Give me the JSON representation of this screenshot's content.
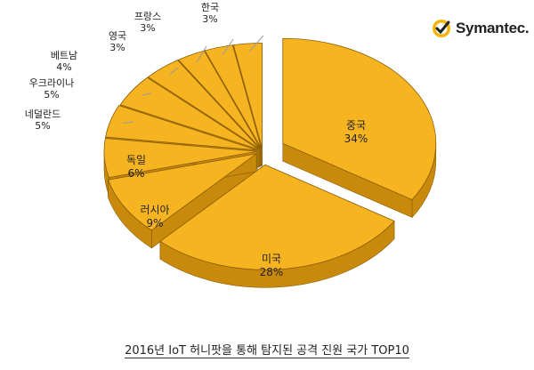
{
  "brand": {
    "name": "Symantec."
  },
  "caption": "2016년 IoT 허니팟을 통해 탐지된 공격 진원 국가 TOP10",
  "colors": {
    "slice_top": "#f7b421",
    "slice_side": "#c98a0c",
    "slice_edge": "#8a5e06",
    "label": "#222222",
    "leader": "#9a9a9a",
    "brand_check": "#f5b400"
  },
  "chart_data": {
    "type": "pie",
    "title": "2016년 IoT 허니팟을 통해 탐지된 공격 진원 국가 TOP10",
    "slices": [
      {
        "label": "중국",
        "value": 34,
        "display": "34%"
      },
      {
        "label": "미국",
        "value": 28,
        "display": "28%"
      },
      {
        "label": "러시아",
        "value": 9,
        "display": "9%"
      },
      {
        "label": "독일",
        "value": 6,
        "display": "6%"
      },
      {
        "label": "네덜란드",
        "value": 5,
        "display": "5%"
      },
      {
        "label": "우크라이나",
        "value": 5,
        "display": "5%"
      },
      {
        "label": "베트남",
        "value": 4,
        "display": "4%"
      },
      {
        "label": "영국",
        "value": 3,
        "display": "3%"
      },
      {
        "label": "프랑스",
        "value": 3,
        "display": "3%"
      },
      {
        "label": "한국",
        "value": 3,
        "display": "3%"
      }
    ],
    "exploded": true,
    "three_d": true
  }
}
